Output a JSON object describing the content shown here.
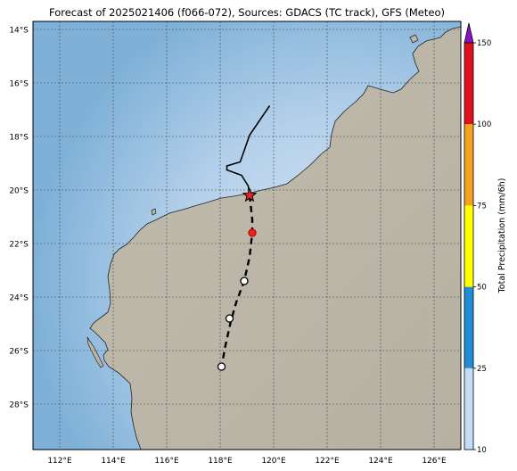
{
  "title": "Forecast of 2025021406 (f066-072), Sources: GDACS (TC track), GFS (Meteo)",
  "map": {
    "lon_range": [
      111.0,
      127.0
    ],
    "lat_range": [
      -29.7,
      -13.7
    ],
    "lon_ticks": [
      {
        "lon": 112,
        "label": "112°E"
      },
      {
        "lon": 114,
        "label": "114°E"
      },
      {
        "lon": 116,
        "label": "116°E"
      },
      {
        "lon": 118,
        "label": "118°E"
      },
      {
        "lon": 120,
        "label": "120°E"
      },
      {
        "lon": 122,
        "label": "122°E"
      },
      {
        "lon": 124,
        "label": "124°E"
      },
      {
        "lon": 126,
        "label": "126°E"
      }
    ],
    "lat_ticks": [
      {
        "lat": -14,
        "label": "14°S"
      },
      {
        "lat": -16,
        "label": "16°S"
      },
      {
        "lat": -18,
        "label": "18°S"
      },
      {
        "lat": -20,
        "label": "20°S"
      },
      {
        "lat": -22,
        "label": "22°S"
      },
      {
        "lat": -24,
        "label": "24°S"
      },
      {
        "lat": -26,
        "label": "26°S"
      },
      {
        "lat": -28,
        "label": "28°S"
      }
    ],
    "colors": {
      "ocean_deep": "#7fb1d8",
      "ocean_shallow": "#cfe2f2",
      "land": "#b9b4a6",
      "land_green": "#9fb3a0",
      "gridline": "#444444"
    },
    "observed_track": [
      [
        119.85,
        -16.85
      ],
      [
        119.1,
        -17.95
      ],
      [
        118.75,
        -18.95
      ],
      [
        118.25,
        -19.1
      ],
      [
        118.25,
        -19.25
      ],
      [
        118.8,
        -19.45
      ],
      [
        119.05,
        -19.85
      ],
      [
        119.1,
        -20.2
      ]
    ],
    "current_position": {
      "lon": 119.1,
      "lat": -20.2,
      "marker": "star",
      "color": "#e8262a"
    },
    "forecast_track": [
      [
        119.1,
        -20.2
      ],
      [
        119.2,
        -21.1
      ],
      [
        119.2,
        -21.6
      ],
      [
        119.1,
        -22.5
      ],
      [
        118.9,
        -23.4
      ],
      [
        118.6,
        -24.2
      ],
      [
        118.4,
        -24.9
      ],
      [
        118.2,
        -25.8
      ],
      [
        118.05,
        -26.6
      ]
    ],
    "forecast_points": [
      {
        "lon": 119.2,
        "lat": -21.6,
        "marker": "filled-circle",
        "color": "#e8262a"
      },
      {
        "lon": 118.9,
        "lat": -23.4,
        "marker": "open-circle",
        "color": "#ffffff"
      },
      {
        "lon": 118.35,
        "lat": -24.8,
        "marker": "open-circle",
        "color": "#ffffff"
      },
      {
        "lon": 118.05,
        "lat": -26.6,
        "marker": "open-circle",
        "color": "#ffffff"
      }
    ]
  },
  "colorbar": {
    "label": "Total Precipitation (mm/6h)",
    "levels": [
      10,
      25,
      50,
      75,
      100,
      150
    ],
    "tick_labels": [
      "10",
      "25",
      "50",
      "75",
      "100",
      "150"
    ],
    "bins": [
      {
        "from": 10,
        "to": 25,
        "color": "#c2ddf6"
      },
      {
        "from": 25,
        "to": 50,
        "color": "#208dd6"
      },
      {
        "from": 50,
        "to": 75,
        "color": "#ffff00"
      },
      {
        "from": 75,
        "to": 100,
        "color": "#f7a21e"
      },
      {
        "from": 100,
        "to": 150,
        "color": "#e2101b"
      }
    ],
    "extend_color": "#8c10c6"
  }
}
